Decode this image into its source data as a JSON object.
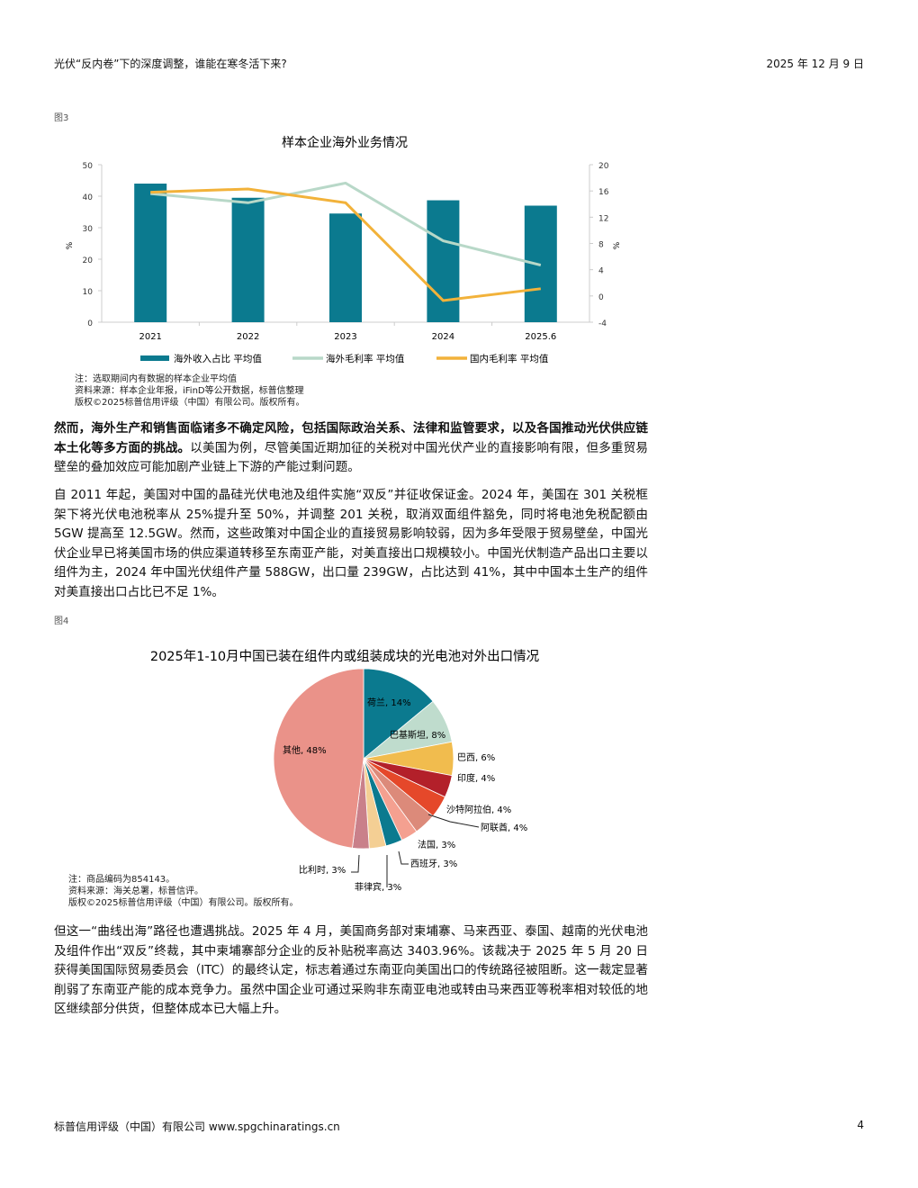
{
  "header": {
    "title": "光伏“反内卷”下的深度调整，谁能在寒冬活下来?",
    "date": "2025 年 12 月 9 日"
  },
  "fig3": {
    "label": "图3",
    "notes": [
      "注：选取期间内有数据的样本企业平均值",
      "资料来源：样本企业年报，iFinD等公开数据，标普信整理",
      "版权©2025标普信用评级（中国）有限公司。版权所有。"
    ]
  },
  "p1": {
    "bold": "然而，海外生产和销售面临诸多不确定风险，包括国际政治关系、法律和监管要求，以及各国推动光伏供应链本土化等多方面的挑战。",
    "normal": "以美国为例，尽管美国近期加征的关税对中国光伏产业的直接影响有限，但多重贸易壁垒的叠加效应可能加剧产业链上下游的产能过剩问题。"
  },
  "p2": "自 2011 年起，美国对中国的晶硅光伏电池及组件实施“双反”并征收保证金。2024 年，美国在 301 关税框架下将光伏电池税率从 25%提升至 50%，并调整 201 关税，取消双面组件豁免，同时将电池免税配额由 5GW 提高至 12.5GW。然而，这些政策对中国企业的直接贸易影响较弱，因为多年受限于贸易壁垒，中国光伏企业早已将美国市场的供应渠道转移至东南亚产能，对美直接出口规模较小。中国光伏制造产品出口主要以组件为主，2024 年中国光伏组件产量 588GW，出口量 239GW，占比达到 41%，其中中国本土生产的组件对美直接出口占比已不足 1%。",
  "fig4": {
    "label": "图4",
    "notes": [
      "注：商品编码为854143。",
      "资料来源：海关总署，标普信评。",
      "版权©2025标普信用评级（中国）有限公司。版权所有。"
    ]
  },
  "p3": "但这一“曲线出海”路径也遭遇挑战。2025 年 4 月，美国商务部对柬埔寨、马来西亚、泰国、越南的光伏电池及组件作出“双反”终裁，其中柬埔寨部分企业的反补贴税率高达 3403.96%。该裁决于 2025 年 5 月 20 日获得美国国际贸易委员会（ITC）的最终认定，标志着通过东南亚向美国出口的传统路径被阻断。这一裁定显著削弱了东南亚产能的成本竞争力。虽然中国企业可通过采购非东南亚电池或转由马来西亚等税率相对较低的地区继续部分供货，但整体成本已大幅上升。",
  "footer": {
    "company": "标普信用评级（中国）有限公司 www.spgchinaratings.cn",
    "page": "4"
  },
  "chart_data": [
    {
      "type": "bar+line",
      "title": "样本企业海外业务情况",
      "categories": [
        "2021",
        "2022",
        "2023",
        "2024",
        "2025.6"
      ],
      "ylabel": "%",
      "y2label": "%",
      "ylim": [
        0,
        50
      ],
      "yticks": [
        0,
        10,
        20,
        30,
        40,
        50
      ],
      "y2lim": [
        -4,
        20
      ],
      "y2ticks": [
        -4,
        0,
        4,
        8,
        12,
        16,
        20
      ],
      "legend": "bottom",
      "series": [
        {
          "name": "海外收入占比 平均值",
          "type": "bar",
          "axis": "left",
          "color": "#0b7a8f",
          "values": [
            44,
            39.5,
            34.5,
            38.7,
            37
          ]
        },
        {
          "name": "海外毛利率 平均值",
          "type": "line",
          "axis": "right",
          "color": "#b8d8c8",
          "values": [
            15.6,
            14.2,
            17.2,
            8.4,
            4.7
          ]
        },
        {
          "name": "国内毛利率 平均值",
          "type": "line",
          "axis": "right",
          "color": "#f2b23a",
          "values": [
            15.8,
            16.3,
            14.2,
            -0.7,
            1.1
          ]
        }
      ]
    },
    {
      "type": "pie",
      "title": "2025年1-10月中国已装在组件内或组装成块的光电池对外出口情况",
      "slices": [
        {
          "label": "荷兰",
          "value": 14,
          "text": "荷兰, 14%",
          "color": "#0b7a8f"
        },
        {
          "label": "巴基斯坦",
          "value": 8,
          "text": "巴基斯坦, 8%",
          "color": "#bfdccd"
        },
        {
          "label": "巴西",
          "value": 6,
          "text": "巴西, 6%",
          "color": "#f1bc4e"
        },
        {
          "label": "印度",
          "value": 4,
          "text": "印度, 4%",
          "color": "#b3202a"
        },
        {
          "label": "沙特阿拉伯",
          "value": 4,
          "text": "沙特阿拉伯, 4%",
          "color": "#e5482a"
        },
        {
          "label": "阿联酋",
          "value": 4,
          "text": "阿联酋, 4%",
          "color": "#dc8a7a"
        },
        {
          "label": "法国",
          "value": 3,
          "text": "法国, 3%",
          "color": "#f4a090"
        },
        {
          "label": "西班牙",
          "value": 3,
          "text": "西班牙, 3%",
          "color": "#0b7a8f"
        },
        {
          "label": "菲律宾",
          "value": 3,
          "text": "菲律宾, 3%",
          "color": "#f4cf94"
        },
        {
          "label": "比利时",
          "value": 3,
          "text": "比利时, 3%",
          "color": "#c9808a"
        },
        {
          "label": "其他",
          "value": 48,
          "text": "其他, 48%",
          "color": "#ea9289"
        }
      ]
    }
  ]
}
